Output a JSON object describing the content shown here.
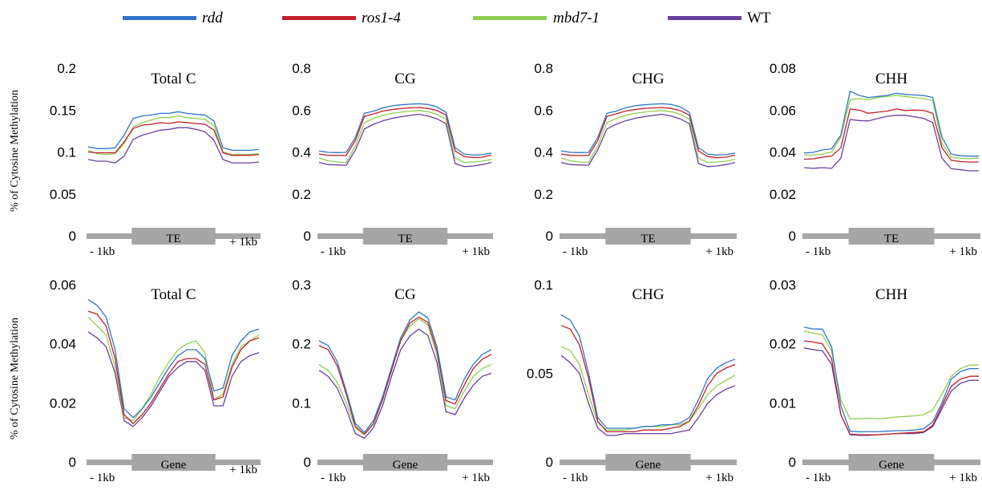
{
  "legend": [
    {
      "name": "rdd",
      "italic": true,
      "color": "#2e75c8"
    },
    {
      "name": "ros1-4",
      "italic": true,
      "color": "#c0202a"
    },
    {
      "name": "mbd7-1",
      "italic": true,
      "color": "#8fcf50"
    },
    {
      "name": "WT",
      "italic": false,
      "color": "#6a3fa0"
    }
  ],
  "ylabel": "% of Cytosine Methylation",
  "region_left": "- 1kb",
  "region_right": "+ 1kb",
  "chart_data": [
    {
      "type": "line",
      "row": 0,
      "col": 0,
      "title": "Total C",
      "segment": "TE",
      "ylim": [
        0,
        0.2
      ],
      "yticks": [
        "0",
        "0.05",
        "0.1",
        "0.15",
        "0.2"
      ],
      "ytick_values": [
        0,
        0.05,
        0.1,
        0.15,
        0.2
      ],
      "series": [
        {
          "name": "rdd",
          "values": [
            0.106,
            0.104,
            0.104,
            0.105,
            0.12,
            0.14,
            0.143,
            0.144,
            0.146,
            0.146,
            0.148,
            0.146,
            0.145,
            0.144,
            0.137,
            0.105,
            0.102,
            0.102,
            0.102,
            0.103
          ]
        },
        {
          "name": "ros1-4",
          "values": [
            0.1,
            0.099,
            0.099,
            0.099,
            0.112,
            0.128,
            0.132,
            0.133,
            0.135,
            0.134,
            0.136,
            0.135,
            0.134,
            0.133,
            0.126,
            0.099,
            0.096,
            0.096,
            0.096,
            0.097
          ]
        },
        {
          "name": "mbd7-1",
          "values": [
            0.102,
            0.098,
            0.097,
            0.098,
            0.11,
            0.13,
            0.135,
            0.138,
            0.141,
            0.141,
            0.143,
            0.141,
            0.14,
            0.139,
            0.131,
            0.1,
            0.097,
            0.097,
            0.097,
            0.098
          ]
        },
        {
          "name": "WT",
          "values": [
            0.091,
            0.089,
            0.089,
            0.087,
            0.095,
            0.115,
            0.12,
            0.123,
            0.126,
            0.127,
            0.129,
            0.129,
            0.127,
            0.124,
            0.114,
            0.091,
            0.087,
            0.087,
            0.087,
            0.088
          ]
        }
      ]
    },
    {
      "type": "line",
      "row": 0,
      "col": 1,
      "title": "CG",
      "segment": "TE",
      "ylim": [
        0,
        0.8
      ],
      "yticks": [
        "0",
        "0.2",
        "0.4",
        "0.6",
        "0.8"
      ],
      "ytick_values": [
        0,
        0.2,
        0.4,
        0.6,
        0.8
      ],
      "series": [
        {
          "name": "rdd",
          "values": [
            0.405,
            0.398,
            0.397,
            0.398,
            0.47,
            0.585,
            0.595,
            0.61,
            0.62,
            0.625,
            0.628,
            0.63,
            0.627,
            0.615,
            0.59,
            0.42,
            0.39,
            0.385,
            0.387,
            0.395
          ]
        },
        {
          "name": "ros1-4",
          "values": [
            0.39,
            0.384,
            0.383,
            0.384,
            0.455,
            0.57,
            0.582,
            0.595,
            0.602,
            0.607,
            0.61,
            0.612,
            0.608,
            0.598,
            0.576,
            0.405,
            0.378,
            0.373,
            0.375,
            0.385
          ]
        },
        {
          "name": "mbd7-1",
          "values": [
            0.37,
            0.358,
            0.352,
            0.35,
            0.43,
            0.54,
            0.56,
            0.574,
            0.584,
            0.59,
            0.595,
            0.598,
            0.592,
            0.58,
            0.557,
            0.37,
            0.35,
            0.352,
            0.356,
            0.365
          ]
        },
        {
          "name": "WT",
          "values": [
            0.35,
            0.34,
            0.338,
            0.337,
            0.41,
            0.51,
            0.532,
            0.548,
            0.56,
            0.568,
            0.574,
            0.58,
            0.572,
            0.558,
            0.535,
            0.345,
            0.33,
            0.333,
            0.34,
            0.35
          ]
        }
      ]
    },
    {
      "type": "line",
      "row": 0,
      "col": 2,
      "title": "CHG",
      "segment": "TE",
      "ylim": [
        0,
        0.8
      ],
      "yticks": [
        "0",
        "0.2",
        "0.4",
        "0.6",
        "0.8"
      ],
      "ytick_values": [
        0,
        0.2,
        0.4,
        0.6,
        0.8
      ],
      "series": [
        {
          "name": "rdd",
          "values": [
            0.405,
            0.398,
            0.397,
            0.398,
            0.47,
            0.585,
            0.595,
            0.61,
            0.62,
            0.625,
            0.628,
            0.63,
            0.627,
            0.615,
            0.59,
            0.42,
            0.39,
            0.385,
            0.387,
            0.395
          ]
        },
        {
          "name": "ros1-4",
          "values": [
            0.39,
            0.384,
            0.383,
            0.384,
            0.455,
            0.57,
            0.582,
            0.595,
            0.602,
            0.607,
            0.61,
            0.612,
            0.608,
            0.598,
            0.576,
            0.405,
            0.378,
            0.373,
            0.375,
            0.385
          ]
        },
        {
          "name": "mbd7-1",
          "values": [
            0.37,
            0.358,
            0.352,
            0.35,
            0.43,
            0.54,
            0.56,
            0.574,
            0.584,
            0.59,
            0.595,
            0.598,
            0.592,
            0.58,
            0.557,
            0.37,
            0.35,
            0.352,
            0.356,
            0.365
          ]
        },
        {
          "name": "WT",
          "values": [
            0.35,
            0.34,
            0.338,
            0.337,
            0.41,
            0.51,
            0.532,
            0.548,
            0.56,
            0.568,
            0.574,
            0.58,
            0.572,
            0.558,
            0.535,
            0.345,
            0.33,
            0.333,
            0.34,
            0.35
          ]
        }
      ]
    },
    {
      "type": "line",
      "row": 0,
      "col": 3,
      "title": "CHH",
      "segment": "TE",
      "ylim": [
        0,
        0.08
      ],
      "yticks": [
        "0",
        "0.02",
        "0.04",
        "0.06",
        "0.08"
      ],
      "ytick_values": [
        0,
        0.02,
        0.04,
        0.06,
        0.08
      ],
      "series": [
        {
          "name": "rdd",
          "values": [
            0.0395,
            0.0398,
            0.041,
            0.0415,
            0.048,
            0.069,
            0.067,
            0.066,
            0.0665,
            0.067,
            0.068,
            0.0675,
            0.0672,
            0.067,
            0.066,
            0.047,
            0.039,
            0.0382,
            0.038,
            0.038
          ]
        },
        {
          "name": "ros1-4",
          "values": [
            0.0365,
            0.0367,
            0.0375,
            0.038,
            0.042,
            0.0605,
            0.06,
            0.0585,
            0.059,
            0.0595,
            0.0605,
            0.0598,
            0.06,
            0.0598,
            0.0585,
            0.042,
            0.036,
            0.0354,
            0.0352,
            0.0352
          ]
        },
        {
          "name": "mbd7-1",
          "values": [
            0.0385,
            0.0385,
            0.039,
            0.04,
            0.047,
            0.065,
            0.0655,
            0.065,
            0.066,
            0.0665,
            0.067,
            0.0665,
            0.066,
            0.0655,
            0.0645,
            0.044,
            0.0375,
            0.037,
            0.0368,
            0.037
          ]
        },
        {
          "name": "WT",
          "values": [
            0.0325,
            0.0322,
            0.0325,
            0.0322,
            0.037,
            0.0555,
            0.055,
            0.0548,
            0.056,
            0.057,
            0.0575,
            0.0575,
            0.0568,
            0.056,
            0.054,
            0.037,
            0.032,
            0.0315,
            0.031,
            0.031
          ]
        }
      ]
    },
    {
      "type": "line",
      "row": 1,
      "col": 0,
      "title": "Total C",
      "segment": "Gene",
      "ylim": [
        0,
        0.06
      ],
      "yticks": [
        "0",
        "0.02",
        "0.04",
        "0.06"
      ],
      "ytick_values": [
        0,
        0.02,
        0.04,
        0.06
      ],
      "series": [
        {
          "name": "rdd",
          "values": [
            0.055,
            0.053,
            0.049,
            0.038,
            0.018,
            0.015,
            0.018,
            0.022,
            0.027,
            0.032,
            0.036,
            0.038,
            0.038,
            0.035,
            0.024,
            0.025,
            0.036,
            0.041,
            0.044,
            0.045
          ]
        },
        {
          "name": "ros1-4",
          "values": [
            0.051,
            0.05,
            0.046,
            0.035,
            0.016,
            0.013,
            0.016,
            0.02,
            0.025,
            0.03,
            0.034,
            0.035,
            0.035,
            0.033,
            0.021,
            0.022,
            0.032,
            0.038,
            0.041,
            0.042
          ]
        },
        {
          "name": "mbd7-1",
          "values": [
            0.049,
            0.046,
            0.043,
            0.032,
            0.015,
            0.014,
            0.018,
            0.023,
            0.029,
            0.034,
            0.038,
            0.04,
            0.041,
            0.037,
            0.021,
            0.023,
            0.033,
            0.039,
            0.041,
            0.043
          ]
        },
        {
          "name": "WT",
          "values": [
            0.044,
            0.042,
            0.039,
            0.03,
            0.014,
            0.012,
            0.015,
            0.019,
            0.024,
            0.029,
            0.032,
            0.034,
            0.034,
            0.031,
            0.019,
            0.019,
            0.029,
            0.034,
            0.036,
            0.037
          ]
        }
      ]
    },
    {
      "type": "line",
      "row": 1,
      "col": 1,
      "title": "CG",
      "segment": "Gene",
      "ylim": [
        0,
        0.3
      ],
      "yticks": [
        "0",
        "0.1",
        "0.2",
        "0.3"
      ],
      "ytick_values": [
        0,
        0.1,
        0.2,
        0.3
      ],
      "series": [
        {
          "name": "rdd",
          "values": [
            0.205,
            0.197,
            0.17,
            0.12,
            0.065,
            0.05,
            0.07,
            0.11,
            0.16,
            0.21,
            0.24,
            0.254,
            0.244,
            0.195,
            0.11,
            0.105,
            0.14,
            0.165,
            0.182,
            0.19
          ]
        },
        {
          "name": "ros1-4",
          "values": [
            0.197,
            0.19,
            0.163,
            0.115,
            0.06,
            0.047,
            0.065,
            0.105,
            0.155,
            0.205,
            0.235,
            0.245,
            0.236,
            0.188,
            0.104,
            0.098,
            0.13,
            0.158,
            0.174,
            0.182
          ]
        },
        {
          "name": "mbd7-1",
          "values": [
            0.165,
            0.155,
            0.135,
            0.1,
            0.058,
            0.046,
            0.064,
            0.105,
            0.158,
            0.205,
            0.23,
            0.242,
            0.232,
            0.18,
            0.095,
            0.09,
            0.12,
            0.145,
            0.158,
            0.165
          ]
        },
        {
          "name": "WT",
          "values": [
            0.155,
            0.145,
            0.125,
            0.09,
            0.048,
            0.04,
            0.058,
            0.095,
            0.145,
            0.19,
            0.213,
            0.225,
            0.214,
            0.168,
            0.085,
            0.08,
            0.108,
            0.13,
            0.145,
            0.15
          ]
        }
      ]
    },
    {
      "type": "line",
      "row": 1,
      "col": 2,
      "title": "CHG",
      "segment": "Gene",
      "ylim": [
        0,
        0.1
      ],
      "yticks": [
        "0",
        "0.05",
        "0.1"
      ],
      "ytick_values": [
        0,
        0.05,
        0.1
      ],
      "series": [
        {
          "name": "rdd",
          "values": [
            0.083,
            0.08,
            0.071,
            0.05,
            0.025,
            0.019,
            0.019,
            0.019,
            0.019,
            0.02,
            0.02,
            0.021,
            0.021,
            0.022,
            0.025,
            0.035,
            0.047,
            0.053,
            0.056,
            0.058
          ]
        },
        {
          "name": "ros1-4",
          "values": [
            0.077,
            0.075,
            0.066,
            0.047,
            0.023,
            0.017,
            0.017,
            0.017,
            0.017,
            0.018,
            0.018,
            0.018,
            0.019,
            0.02,
            0.023,
            0.032,
            0.043,
            0.05,
            0.053,
            0.055
          ]
        },
        {
          "name": "mbd7-1",
          "values": [
            0.065,
            0.063,
            0.055,
            0.038,
            0.022,
            0.018,
            0.018,
            0.018,
            0.019,
            0.02,
            0.02,
            0.02,
            0.021,
            0.021,
            0.023,
            0.03,
            0.038,
            0.043,
            0.046,
            0.049
          ]
        },
        {
          "name": "WT",
          "values": [
            0.06,
            0.056,
            0.05,
            0.033,
            0.019,
            0.015,
            0.015,
            0.016,
            0.016,
            0.016,
            0.016,
            0.016,
            0.016,
            0.017,
            0.018,
            0.025,
            0.033,
            0.038,
            0.041,
            0.043
          ]
        }
      ]
    },
    {
      "type": "line",
      "row": 1,
      "col": 3,
      "title": "CHH",
      "segment": "Gene",
      "ylim": [
        0,
        0.03
      ],
      "yticks": [
        "0",
        "0.01",
        "0.02",
        "0.03"
      ],
      "ytick_values": [
        0,
        0.01,
        0.02,
        0.03
      ],
      "series": [
        {
          "name": "rdd",
          "values": [
            0.0228,
            0.0225,
            0.0225,
            0.0195,
            0.0095,
            0.0052,
            0.0051,
            0.0051,
            0.0051,
            0.0052,
            0.0053,
            0.0053,
            0.0054,
            0.0056,
            0.0068,
            0.01,
            0.014,
            0.0153,
            0.0158,
            0.0158
          ]
        },
        {
          "name": "ros1-4",
          "values": [
            0.0205,
            0.0203,
            0.02,
            0.0175,
            0.008,
            0.0047,
            0.0046,
            0.0046,
            0.0046,
            0.0047,
            0.0048,
            0.0049,
            0.005,
            0.0051,
            0.0062,
            0.0095,
            0.0128,
            0.014,
            0.0145,
            0.0145
          ]
        },
        {
          "name": "mbd7-1",
          "values": [
            0.0222,
            0.0218,
            0.0215,
            0.0188,
            0.0105,
            0.0073,
            0.0073,
            0.0074,
            0.0073,
            0.0074,
            0.0076,
            0.0077,
            0.0078,
            0.008,
            0.0088,
            0.0115,
            0.0145,
            0.0158,
            0.0164,
            0.0164
          ]
        },
        {
          "name": "WT",
          "values": [
            0.0193,
            0.019,
            0.0188,
            0.0165,
            0.008,
            0.0046,
            0.0045,
            0.0045,
            0.0046,
            0.0047,
            0.0048,
            0.0048,
            0.0048,
            0.005,
            0.006,
            0.009,
            0.012,
            0.0133,
            0.0138,
            0.0138
          ]
        }
      ]
    }
  ]
}
